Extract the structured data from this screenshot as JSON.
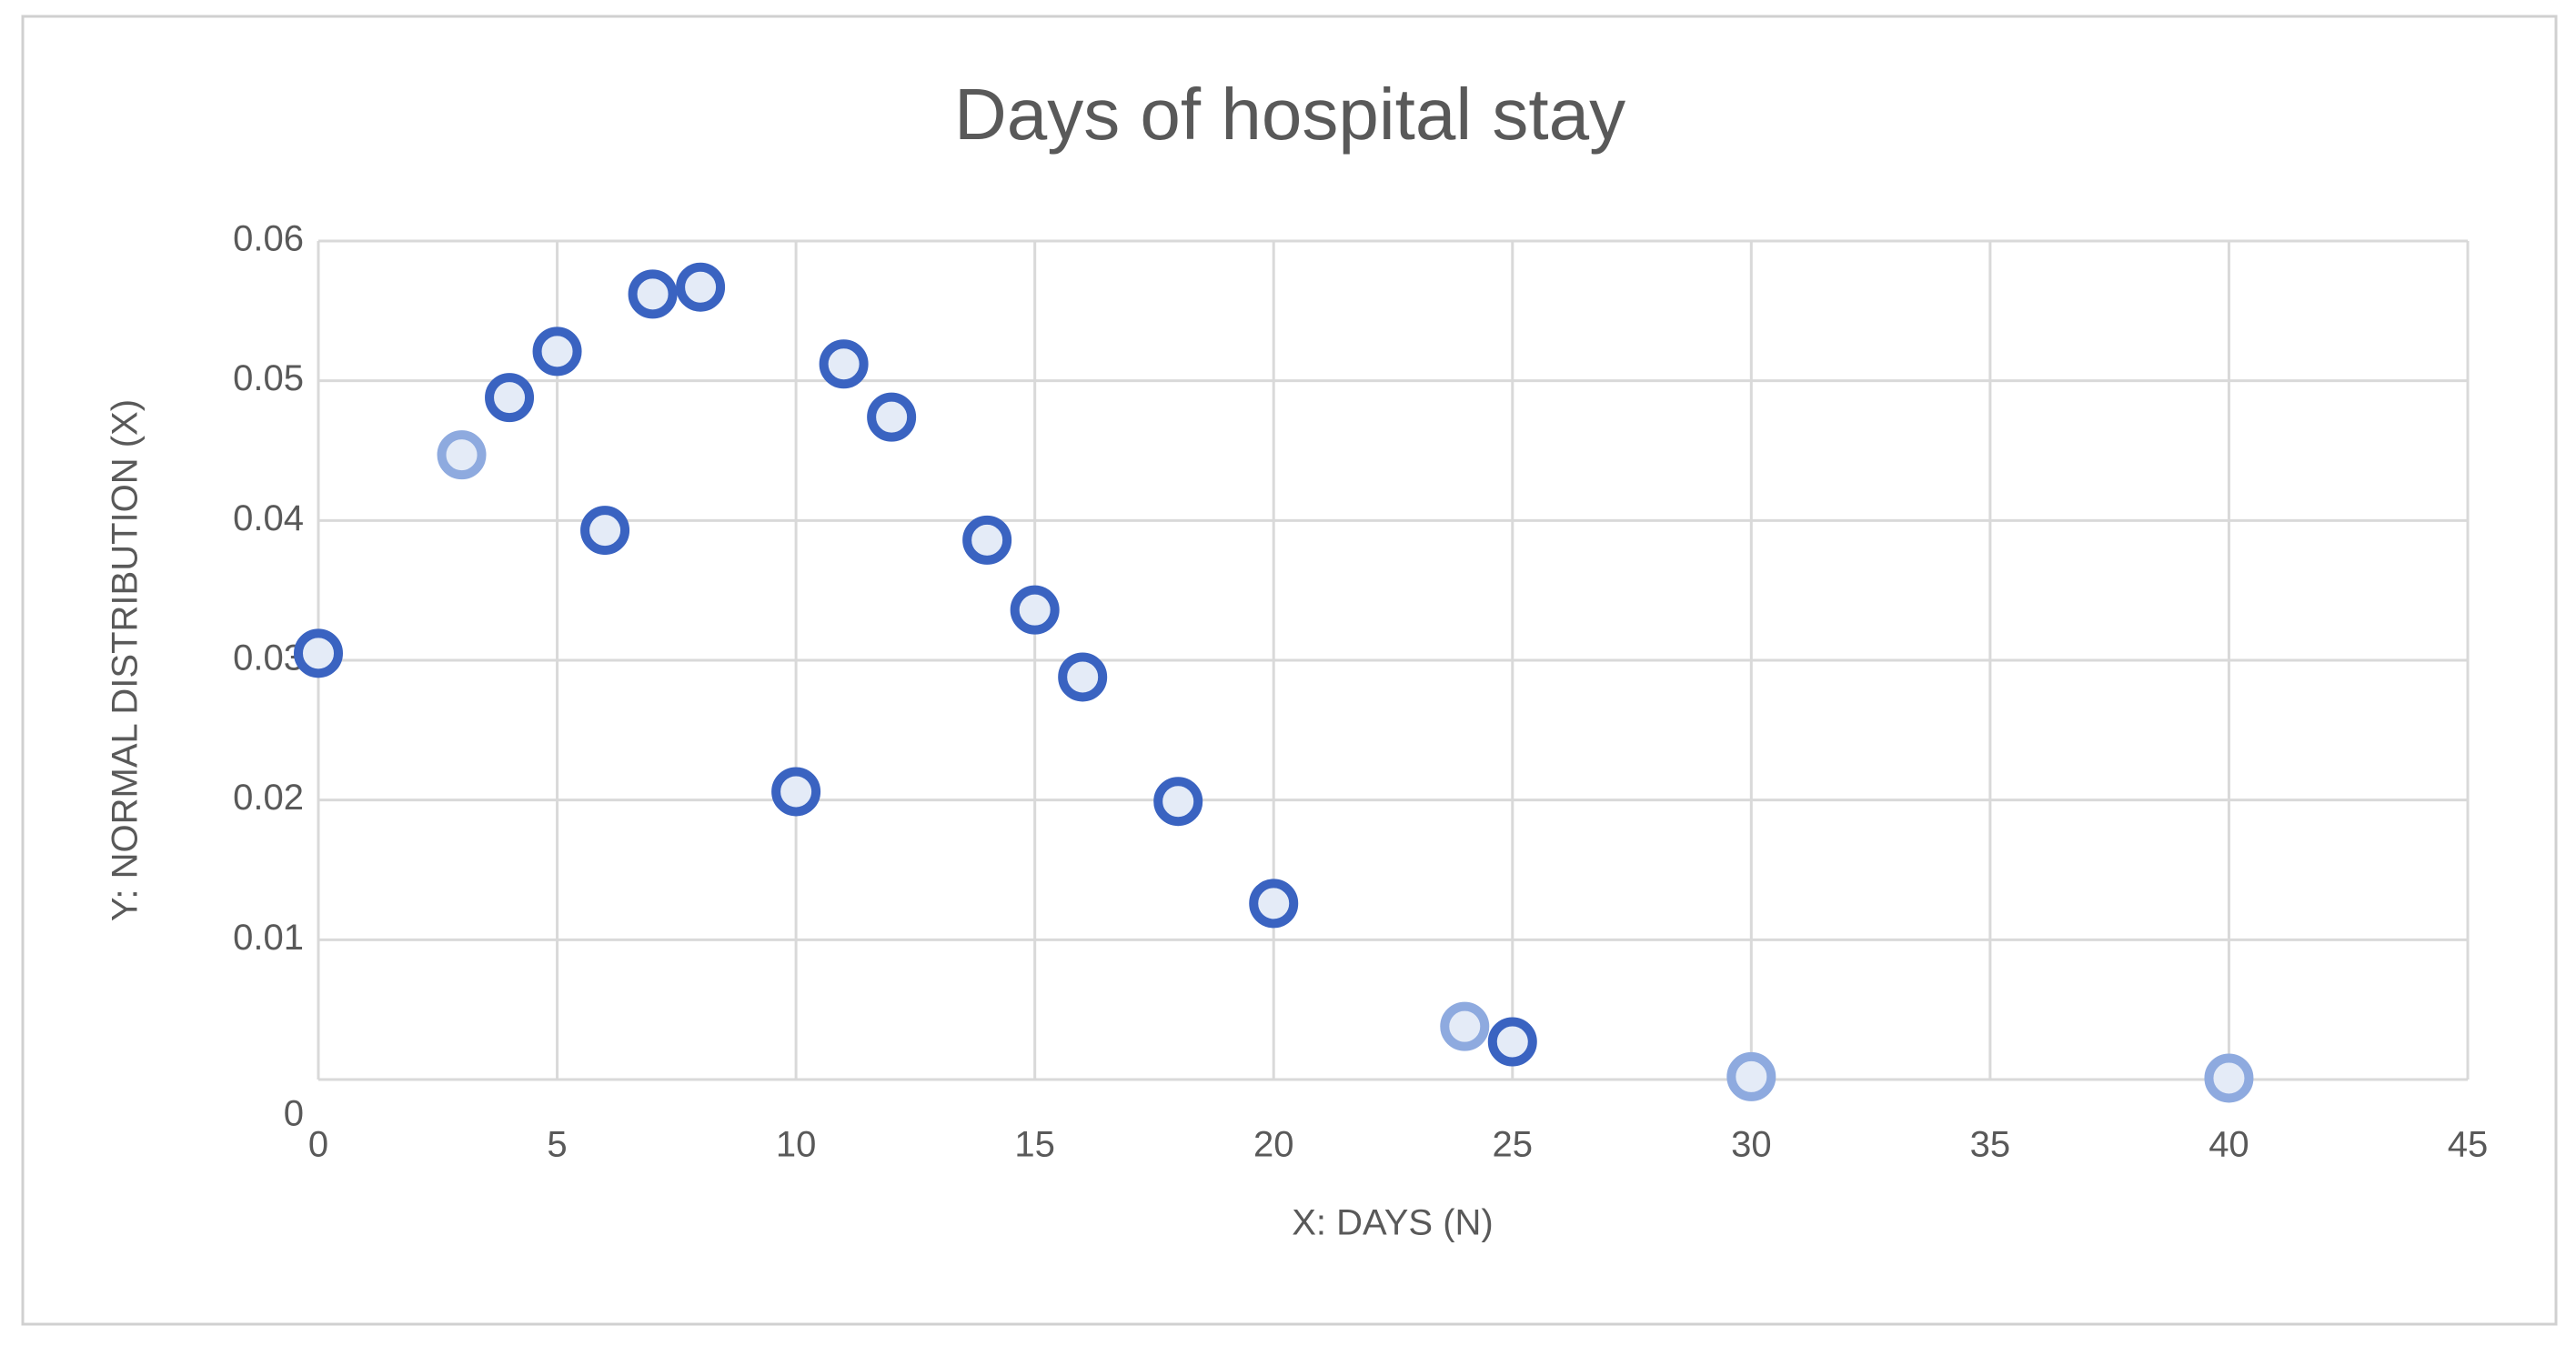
{
  "chart_data": {
    "type": "scatter",
    "title": "Days of hospital stay",
    "x_label": "X: DAYS (N)",
    "y_label": "Y: NORMAL DISTRIBUTION (X)",
    "x": [
      0,
      3,
      4,
      5,
      6,
      7,
      8,
      10,
      11,
      12,
      14,
      15,
      16,
      18,
      20,
      24,
      25,
      30,
      40
    ],
    "values": [
      0.0305,
      0.0447,
      0.0488,
      0.0521,
      0.0393,
      0.0562,
      0.0567,
      0.0206,
      0.0512,
      0.0474,
      0.0386,
      0.0336,
      0.0288,
      0.0199,
      0.0126,
      0.0038,
      0.0027,
      0.0002,
      0.0001
    ],
    "point_colors": [
      "#3a63c1",
      "#8eaadf",
      "#3a63c1",
      "#3a63c1",
      "#3a63c1",
      "#3a63c1",
      "#3a63c1",
      "#3a63c1",
      "#3a63c1",
      "#3a63c1",
      "#3a63c1",
      "#3a63c1",
      "#3a63c1",
      "#3a63c1",
      "#3a63c1",
      "#8eaadf",
      "#3a63c1",
      "#8eaadf",
      "#8eaadf"
    ],
    "xlim": [
      0,
      45
    ],
    "ylim": [
      0,
      0.06
    ],
    "xticks": [
      0,
      5,
      10,
      15,
      20,
      25,
      30,
      35,
      40,
      45
    ],
    "yticks": [
      0,
      0.01,
      0.02,
      0.03,
      0.04,
      0.05,
      0.06
    ],
    "grid": true
  }
}
